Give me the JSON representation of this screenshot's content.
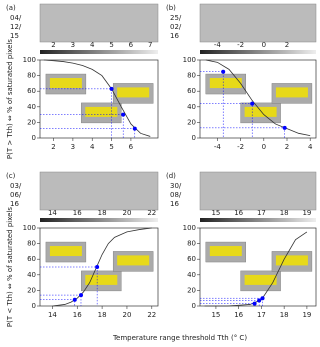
{
  "x_label": "Temperature range threshold Tth (° C)",
  "chart_data": [
    {
      "type": "line",
      "panel_label": "(a)",
      "date": [
        "04/",
        "12/",
        "15"
      ],
      "ylabel": "P(T > Tth) ⇔ % of saturated pixels",
      "colorbar_ticks": [
        2,
        3,
        4,
        5,
        6,
        7
      ],
      "xlim": [
        1.3,
        7.4
      ],
      "xticks": [
        2,
        3,
        4,
        5,
        6
      ],
      "ylim": [
        0,
        100
      ],
      "yticks": [
        0,
        20,
        40,
        60,
        80,
        100
      ],
      "curve": {
        "color": "#333333",
        "x": [
          1.5,
          2,
          2.5,
          3,
          3.5,
          4,
          4.5,
          5,
          5.5,
          6,
          6.5,
          7
        ],
        "values": [
          100,
          99,
          98,
          96,
          93,
          88,
          80,
          63,
          40,
          18,
          6,
          2
        ]
      },
      "points": {
        "color": "#0000ff",
        "x": [
          5.0,
          5.6,
          6.2
        ],
        "values": [
          63,
          30,
          12
        ]
      }
    },
    {
      "type": "line",
      "panel_label": "(b)",
      "date": [
        "25/",
        "02/",
        "16"
      ],
      "colorbar_ticks": [
        -4,
        -2,
        0,
        2
      ],
      "xlim": [
        -5.5,
        4.5
      ],
      "xticks": [
        -4,
        -2,
        0,
        2,
        4
      ],
      "ylim": [
        0,
        100
      ],
      "yticks": [
        0,
        20,
        40,
        60,
        80,
        100
      ],
      "curve": {
        "color": "#333333",
        "x": [
          -5,
          -4,
          -3,
          -2,
          -1,
          0,
          1,
          2,
          3,
          4
        ],
        "values": [
          100,
          97,
          88,
          70,
          48,
          30,
          18,
          12,
          6,
          3
        ]
      },
      "points": {
        "color": "#0000ff",
        "x": [
          -3.5,
          -1,
          1.8
        ],
        "values": [
          85,
          44,
          13
        ]
      }
    },
    {
      "type": "line",
      "panel_label": "(c)",
      "date": [
        "03/",
        "06/",
        "16"
      ],
      "ylabel": "P(T < Tth) ⇔ % of saturated pixels",
      "colorbar_ticks": [
        14,
        16,
        18,
        20,
        22
      ],
      "xlim": [
        13,
        22.5
      ],
      "xticks": [
        14,
        16,
        18,
        20,
        22
      ],
      "ylim": [
        0,
        100
      ],
      "yticks": [
        0,
        20,
        40,
        60,
        80,
        100
      ],
      "curve": {
        "color": "#333333",
        "x": [
          14,
          15,
          15.5,
          16,
          16.5,
          17,
          17.5,
          18,
          18.5,
          19,
          20,
          21,
          22
        ],
        "values": [
          0,
          2,
          5,
          10,
          18,
          30,
          48,
          66,
          80,
          88,
          95,
          98,
          100
        ]
      },
      "points": {
        "color": "#0000ff",
        "x": [
          15.8,
          16.3,
          17.6
        ],
        "values": [
          8,
          14,
          50
        ]
      }
    },
    {
      "type": "line",
      "panel_label": "(d)",
      "date": [
        "30/",
        "08/",
        "16"
      ],
      "colorbar_ticks": [
        15,
        16,
        17,
        18,
        19
      ],
      "xlim": [
        14.3,
        19.4
      ],
      "xticks": [
        15,
        16,
        17,
        18,
        19
      ],
      "ylim": [
        0,
        100
      ],
      "yticks": [
        0,
        20,
        40,
        60,
        80,
        100
      ],
      "curve": {
        "color": "#333333",
        "x": [
          14.5,
          15,
          15.5,
          16,
          16.5,
          17,
          17.5,
          18,
          18.5,
          19
        ],
        "values": [
          0,
          0,
          0,
          1,
          2,
          8,
          30,
          60,
          85,
          95
        ]
      },
      "points": {
        "color": "#0000ff",
        "x": [
          16.7,
          16.9,
          17.05
        ],
        "values": [
          3,
          7,
          10
        ]
      }
    }
  ]
}
